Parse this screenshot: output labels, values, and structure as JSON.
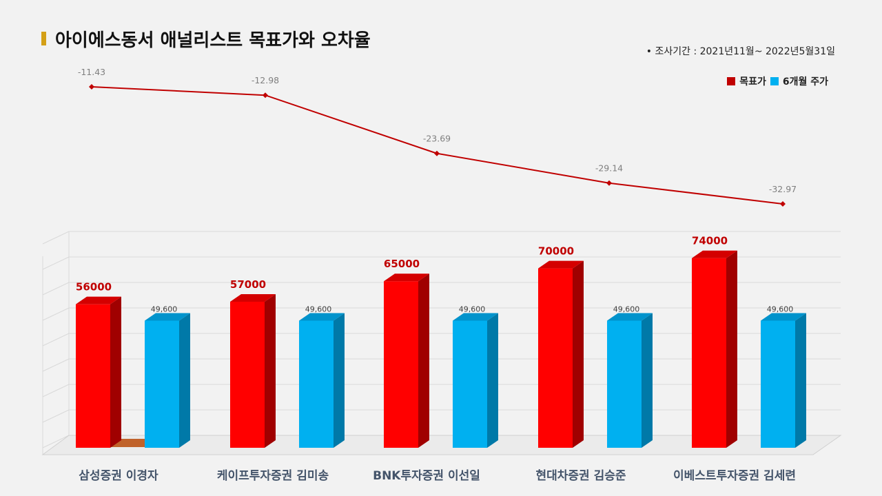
{
  "title": "아이에스동서 애널리스트 목표가와 오차율",
  "note": "•  조사기간 : 2021년11월~ 2022년5월31일",
  "colors": {
    "target_front": "#ff0000",
    "target_side": "#a00000",
    "target_top": "#d40000",
    "price_front": "#00b0f0",
    "price_side": "#0079a8",
    "price_top": "#0093cc",
    "line": "#c00000",
    "title_accent": "#d4a017"
  },
  "chart_data": [
    {
      "type": "bar",
      "categories": [
        "삼성증권 이경자",
        "케이프투자증권 김미송",
        "BNK투자증권 이선일",
        "현대차증권 김승준",
        "이베스트투자증권 김세련"
      ],
      "series": [
        {
          "name": "목표가",
          "values": [
            56000,
            57000,
            65000,
            70000,
            74000
          ],
          "labels": [
            "56000",
            "57000",
            "65000",
            "70000",
            "74000"
          ]
        },
        {
          "name": "6개월 주가",
          "values": [
            49600,
            49600,
            49600,
            49600,
            49600
          ],
          "labels": [
            "49,600",
            "49,600",
            "49,600",
            "49,600",
            "49,600"
          ]
        }
      ],
      "legend_position": "top-right",
      "grid": true
    },
    {
      "type": "line",
      "categories": [
        "삼성증권 이경자",
        "케이프투자증권 김미송",
        "BNK투자증권 이선일",
        "현대차증권 김승준",
        "이베스트투자증권 김세련"
      ],
      "values": [
        -11.43,
        -12.98,
        -23.69,
        -29.14,
        -32.97
      ],
      "labels": [
        "-11.43",
        "-12.98",
        "-23.69",
        "-29.14",
        "-32.97"
      ]
    }
  ]
}
